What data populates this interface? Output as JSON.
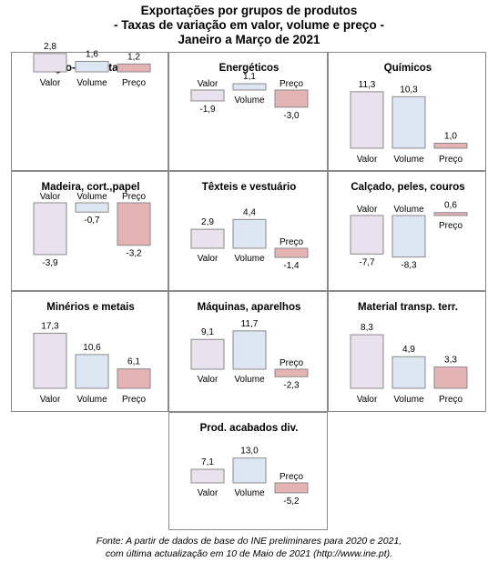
{
  "title": {
    "line1": "Exportações por grupos de produtos",
    "line2": "- Taxas de variação em valor, volume e preço -",
    "line3": "Janeiro a Março de 2021"
  },
  "footer": {
    "line1": "Fonte: A partir de dados de base do INE preliminares para 2020 e 2021,",
    "line2": "com última actualização em 10 de Maio de 2021  (http://www.ine.pt)."
  },
  "colors": {
    "valor": "#e9e1ee",
    "volume": "#dde7f3",
    "preco": "#e6b3b5",
    "border": "#8a8a8a"
  },
  "chart_data": [
    {
      "type": "bar",
      "title": "Agro-alimentares",
      "categories": [
        "Valor",
        "Volume",
        "Preço"
      ],
      "values": [
        2.8,
        1.6,
        1.2
      ],
      "labels": [
        "2,8",
        "1,6",
        "1,2"
      ]
    },
    {
      "type": "bar",
      "title": "Energéticos",
      "categories": [
        "Valor",
        "Volume",
        "Preço"
      ],
      "values": [
        -1.9,
        1.1,
        -3.0
      ],
      "labels": [
        "-1,9",
        "1,1",
        "-3,0"
      ]
    },
    {
      "type": "bar",
      "title": "Químicos",
      "categories": [
        "Valor",
        "Volume",
        "Preço"
      ],
      "values": [
        11.3,
        10.3,
        1.0
      ],
      "labels": [
        "11,3",
        "10,3",
        "1,0"
      ]
    },
    {
      "type": "bar",
      "title": "Madeira, cort.,papel",
      "categories": [
        "Valor",
        "Volume",
        "Preço"
      ],
      "values": [
        -3.9,
        -0.7,
        -3.2
      ],
      "labels": [
        "-3,9",
        "-0,7",
        "-3,2"
      ]
    },
    {
      "type": "bar",
      "title": "Têxteis e vestuário",
      "categories": [
        "Valor",
        "Volume",
        "Preço"
      ],
      "values": [
        2.9,
        4.4,
        -1.4
      ],
      "labels": [
        "2,9",
        "4,4",
        "-1,4"
      ]
    },
    {
      "type": "bar",
      "title": "Calçado,  peles, couros",
      "categories": [
        "Valor",
        "Volume",
        "Preço"
      ],
      "values": [
        -7.7,
        -8.3,
        0.6
      ],
      "labels": [
        "-7,7",
        "-8,3",
        "0,6"
      ]
    },
    {
      "type": "bar",
      "title": "Minérios e metais",
      "categories": [
        "Valor",
        "Volume",
        "Preço"
      ],
      "values": [
        17.3,
        10.6,
        6.1
      ],
      "labels": [
        "17,3",
        "10,6",
        "6,1"
      ]
    },
    {
      "type": "bar",
      "title": "Máquinas,  aparelhos",
      "categories": [
        "Valor",
        "Volume",
        "Preço"
      ],
      "values": [
        9.1,
        11.7,
        -2.3
      ],
      "labels": [
        "9,1",
        "11,7",
        "-2,3"
      ]
    },
    {
      "type": "bar",
      "title": "Material transp. terr.",
      "categories": [
        "Valor",
        "Volume",
        "Preço"
      ],
      "values": [
        8.3,
        4.9,
        3.3
      ],
      "labels": [
        "8,3",
        "4,9",
        "3,3"
      ]
    },
    {
      "type": "bar",
      "title": "Prod. acabados  div.",
      "categories": [
        "Valor",
        "Volume",
        "Preço"
      ],
      "values": [
        7.1,
        13.0,
        -5.2
      ],
      "labels": [
        "7,1",
        "13,0",
        "-5,2"
      ]
    }
  ]
}
